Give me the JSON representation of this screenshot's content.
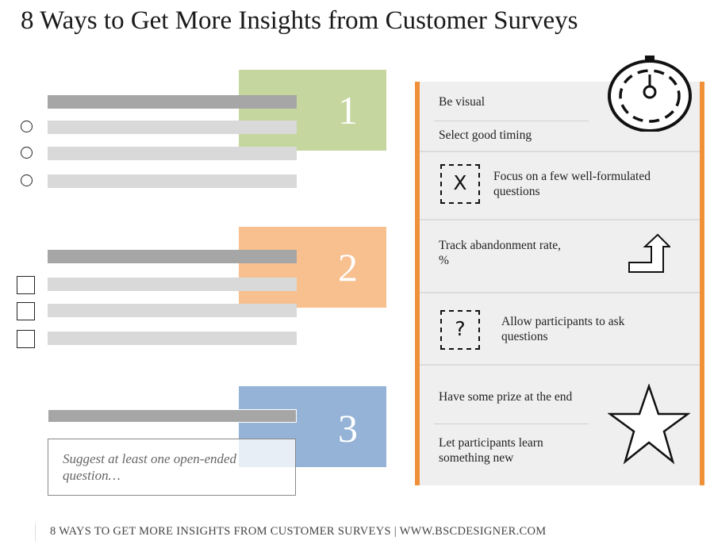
{
  "title": "8 Ways to Get More Insights from Customer Surveys",
  "sections": [
    {
      "number": "1",
      "color": "#c5d79e",
      "input_type": "radio"
    },
    {
      "number": "2",
      "color": "#f8bf8f",
      "input_type": "checkbox"
    },
    {
      "number": "3",
      "color": "#94b3d6",
      "input_type": "open-ended"
    }
  ],
  "open_ended_text": "Suggest at least one open-ended question…",
  "panel": {
    "accent_color": "#f0913a",
    "items": [
      {
        "text": "Be visual",
        "icon": "stopwatch-icon"
      },
      {
        "text": "Select good timing"
      },
      {
        "text": "Focus on a few well-formulated questions",
        "icon": "x-dashed-box-icon",
        "icon_glyph": "X"
      },
      {
        "text": "Track abandonment rate, %",
        "icon": "turn-up-arrow-icon"
      },
      {
        "text": "Allow participants to ask questions",
        "icon": "question-dashed-box-icon",
        "icon_glyph": "?"
      },
      {
        "text": "Have some prize at the end",
        "icon": "star-icon"
      },
      {
        "text": "Let participants learn something new"
      }
    ]
  },
  "footer": "8 WAYS TO GET MORE INSIGHTS FROM CUSTOMER SURVEYS | WWW.BSCDESIGNER.COM"
}
